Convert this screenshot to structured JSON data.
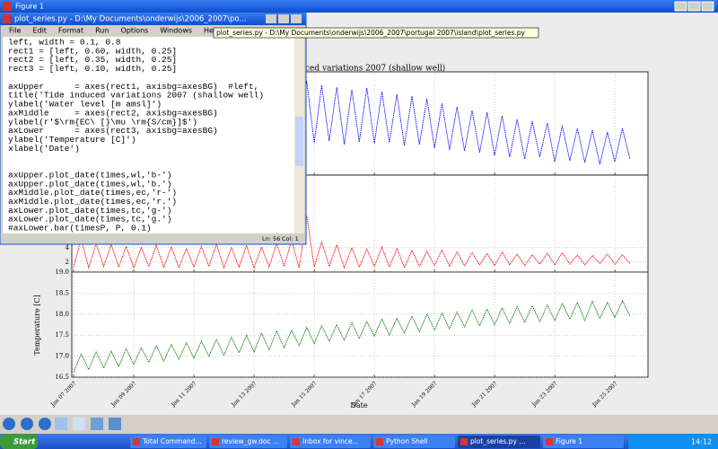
{
  "figure_window": {
    "title": "Figure 1",
    "plot": {
      "title_visible": "ced variations 2007 (shallow well)",
      "xlabel": "Date",
      "ylabel_lower": "Temperature [C]",
      "grid": true,
      "x": [
        7,
        7.25,
        7.5,
        7.75,
        8,
        8.25,
        8.5,
        8.75,
        9,
        9.25,
        9.5,
        9.75,
        10,
        10.25,
        10.5,
        10.75,
        11,
        11.25,
        11.5,
        11.75,
        12,
        12.25,
        12.5,
        12.75,
        13,
        13.25,
        13.5,
        13.75,
        14,
        14.25,
        14.5,
        14.75,
        15,
        15.25,
        15.5,
        15.75,
        16,
        16.25,
        16.5,
        16.75,
        17,
        17.25,
        17.5,
        17.75,
        18,
        18.25,
        18.5,
        18.75,
        19,
        19.25,
        19.5,
        19.75,
        20,
        20.25,
        20.5,
        20.75,
        21,
        21.25,
        21.5,
        21.75,
        22,
        22.25,
        22.5,
        22.75,
        23,
        23.25,
        23.5,
        23.75,
        24,
        24.25,
        24.5,
        24.75,
        25,
        25.25,
        25.5
      ],
      "xlim": [
        6.94,
        26.1
      ],
      "xticks": [
        {
          "value": 7,
          "label": "Jan 07 2007"
        },
        {
          "value": 9,
          "label": "Jan 09 2007"
        },
        {
          "value": 11,
          "label": "Jan 11 2007"
        },
        {
          "value": 13,
          "label": "Jan 13 2007"
        },
        {
          "value": 15,
          "label": "Jan 15 2007"
        },
        {
          "value": 17,
          "label": "Jan 17 2007"
        },
        {
          "value": 19,
          "label": "Jan 19 2007"
        },
        {
          "value": 21,
          "label": "Jan 21 2007"
        },
        {
          "value": 23,
          "label": "Jan 23 2007"
        },
        {
          "value": 25,
          "label": "Jan 25 2007"
        }
      ],
      "panels": [
        {
          "color": "#0000ff",
          "ylim": [
            0,
            1.15
          ],
          "values": [
            0.3,
            0.75,
            0.32,
            0.72,
            0.3,
            0.78,
            0.33,
            0.74,
            0.38,
            0.82,
            0.4,
            0.85,
            0.37,
            0.8,
            0.42,
            0.86,
            0.4,
            0.9,
            0.38,
            0.95,
            0.36,
            0.92,
            0.4,
            1.0,
            0.35,
            1.02,
            0.33,
            1.05,
            0.36,
            1.12,
            0.34,
            1.05,
            0.36,
            1.0,
            0.38,
            0.98,
            0.34,
            0.95,
            0.37,
            0.97,
            0.35,
            0.93,
            0.36,
            0.9,
            0.33,
            0.88,
            0.34,
            0.85,
            0.3,
            0.8,
            0.28,
            0.76,
            0.27,
            0.72,
            0.25,
            0.7,
            0.22,
            0.66,
            0.2,
            0.62,
            0.18,
            0.6,
            0.2,
            0.58,
            0.15,
            0.55,
            0.16,
            0.52,
            0.14,
            0.5,
            0.12,
            0.48,
            0.15,
            0.52,
            0.18
          ]
        },
        {
          "color": "#ff0000",
          "ylim": [
            0.6,
            14.1
          ],
          "yticks": [
            2,
            4
          ],
          "values": [
            1.3,
            5.2,
            1.2,
            4.6,
            1.4,
            4.4,
            1.3,
            4.2,
            1.2,
            4.0,
            1.4,
            4.3,
            1.3,
            4.1,
            1.2,
            3.9,
            1.3,
            4.2,
            1.4,
            4.5,
            1.2,
            4.0,
            1.3,
            4.3,
            1.2,
            4.1,
            1.3,
            4.6,
            1.4,
            5.0,
            1.2,
            8.5,
            1.3,
            4.8,
            1.4,
            4.4,
            1.2,
            4.0,
            1.3,
            3.8,
            1.4,
            4.1,
            1.3,
            3.9,
            1.2,
            3.6,
            1.4,
            3.5,
            1.5,
            3.7,
            1.4,
            3.4,
            1.5,
            3.3,
            1.6,
            3.2,
            1.5,
            3.4,
            1.6,
            3.1,
            1.5,
            3.0,
            1.7,
            3.2,
            1.6,
            3.3,
            1.7,
            3.0,
            1.6,
            2.9,
            1.8,
            3.1,
            1.7,
            3.0,
            1.8
          ]
        },
        {
          "color": "#008000",
          "ylim": [
            16.5,
            19.0
          ],
          "yticks": [
            {
              "value": 19,
              "label": "19.0"
            },
            18.5,
            {
              "value": 18,
              "label": "18.0"
            },
            17.5,
            {
              "value": 17,
              "label": "17.0"
            },
            16.5
          ],
          "values": [
            16.62,
            17.05,
            16.68,
            17.1,
            16.72,
            17.12,
            16.75,
            17.18,
            16.8,
            17.2,
            16.85,
            17.25,
            16.88,
            17.28,
            16.92,
            17.32,
            16.95,
            17.35,
            17.0,
            17.4,
            17.02,
            17.45,
            17.08,
            17.5,
            17.1,
            17.55,
            17.15,
            17.6,
            17.2,
            17.62,
            17.25,
            17.68,
            17.3,
            17.72,
            17.35,
            17.75,
            17.38,
            17.8,
            17.42,
            17.82,
            17.48,
            17.88,
            17.5,
            17.9,
            17.55,
            17.95,
            17.58,
            18.0,
            17.62,
            18.02,
            17.65,
            18.05,
            17.7,
            18.1,
            17.72,
            18.12,
            17.75,
            18.15,
            17.78,
            18.18,
            17.8,
            18.2,
            17.82,
            18.22,
            17.85,
            18.25,
            17.88,
            18.28,
            17.85,
            18.3,
            17.9,
            18.28,
            17.92,
            18.32,
            17.95
          ]
        }
      ]
    }
  },
  "editor": {
    "title": "plot_series.py - D:\\My Documents\\onderwijs\\2006_2007\\po...",
    "menu": [
      "File",
      "Edit",
      "Format",
      "Run",
      "Options",
      "Windows",
      "Help"
    ],
    "code_blocks": [
      [
        "left, width = 0.1, 0.8",
        "rect1 = [left, 0.60, width, 0.25]",
        "rect2 = [left, 0.35, width, 0.25]",
        "rect3 = [left, 0.10, width, 0.25]"
      ],
      [
        "axUpper      = axes(rect1, axisbg=axesBG)  #left,",
        "title('Tide induced variations 2007 (shallow well)",
        "ylabel('Water level [m amsl]')",
        "axMiddle     = axes(rect2, axisbg=axesBG)",
        "ylabel(r'$\\rm{EC\\ [}\\mu \\rm{S/cm}]$')",
        "axLower      = axes(rect3, axisbg=axesBG)",
        "ylabel('Temperature [C]')",
        "xlabel('Date')"
      ],
      [
        "axUpper.plot_date(times,wl,'b-')",
        "axUpper.plot_date(times,wl,'b.')",
        "axMiddle.plot_date(times,ec,'r-')",
        "axMiddle.plot_date(times,ec,'r.')",
        "axLower.plot_date(times,tc,'g-')",
        "axLower.plot_date(times,tc,'g.')",
        "#axLower.bar(timesP, P, 0.1)"
      ]
    ],
    "status_line": "Ln: 56",
    "status_col": "Col: 1"
  },
  "tooltip": "plot_series.py - D:\\My Documents\\onderwijs\\2006_2007\\portugal 2007\\island\\plot_series.py",
  "taskbar": {
    "start": "Start",
    "tasks": [
      "Total Command...",
      "review_gw.doc ...",
      "Inbox for vince...",
      "Python Shell",
      "plot_series.py ...",
      "Figure 1"
    ],
    "clock": "14:12"
  }
}
